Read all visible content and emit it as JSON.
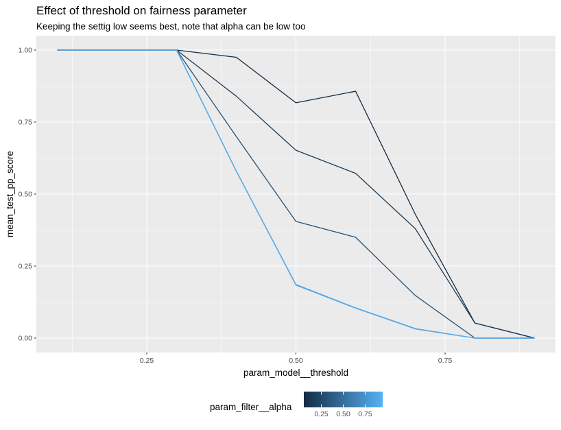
{
  "chart_data": {
    "type": "line",
    "title": "Effect of threshold on fairness parameter",
    "subtitle": "Keeping the settig low seems best, note that alpha can be low too",
    "xlabel": "param_model__threshold",
    "ylabel": "mean_test_pp_score",
    "xlim": [
      0.065,
      0.935
    ],
    "ylim": [
      -0.05,
      1.05
    ],
    "xticks": [
      0.25,
      0.5,
      0.75
    ],
    "xtick_labels": [
      "0.25",
      "0.50",
      "0.75"
    ],
    "yticks": [
      0,
      0.25,
      0.5,
      0.75,
      1.0
    ],
    "ytick_labels": [
      "0.00",
      "0.25",
      "0.50",
      "0.75",
      "1.00"
    ],
    "grid": true,
    "x": [
      0.1,
      0.2,
      0.3,
      0.4,
      0.5,
      0.6,
      0.7,
      0.8,
      0.9
    ],
    "series": [
      {
        "alpha": 0.05,
        "values": [
          1.0,
          1.0,
          1.0,
          0.975,
          0.817,
          0.857,
          0.43,
          0.052,
          0.0
        ]
      },
      {
        "alpha": 0.15,
        "values": [
          1.0,
          1.0,
          1.0,
          0.84,
          0.652,
          0.572,
          0.38,
          0.052,
          0.0
        ]
      },
      {
        "alpha": 0.3,
        "values": [
          1.0,
          1.0,
          1.0,
          0.7,
          0.405,
          0.35,
          0.148,
          0.0,
          0.0
        ]
      },
      {
        "alpha": 0.5,
        "values": [
          1.0,
          1.0,
          1.0,
          0.58,
          0.185,
          0.104,
          0.032,
          0.0,
          0.0
        ]
      },
      {
        "alpha": 0.65,
        "values": [
          1.0,
          1.0,
          1.0,
          0.58,
          0.186,
          0.105,
          0.033,
          0.0,
          0.0
        ]
      },
      {
        "alpha": 0.8,
        "values": [
          1.0,
          1.0,
          1.0,
          0.58,
          0.184,
          0.104,
          0.032,
          0.0,
          0.0
        ]
      },
      {
        "alpha": 0.95,
        "values": [
          1.0,
          1.0,
          1.0,
          0.58,
          0.185,
          0.105,
          0.032,
          0.0,
          0.0
        ]
      }
    ],
    "legend": {
      "title": "param_filter__alpha",
      "position": "bottom",
      "type": "colorbar",
      "range": [
        0.05,
        0.95
      ],
      "ticks": [
        0.25,
        0.5,
        0.75
      ],
      "tick_labels": [
        "0.25",
        "0.50",
        "0.75"
      ],
      "color_low": "#132B43",
      "color_high": "#56B1F7"
    },
    "panel_background": "#EBEBEB"
  }
}
